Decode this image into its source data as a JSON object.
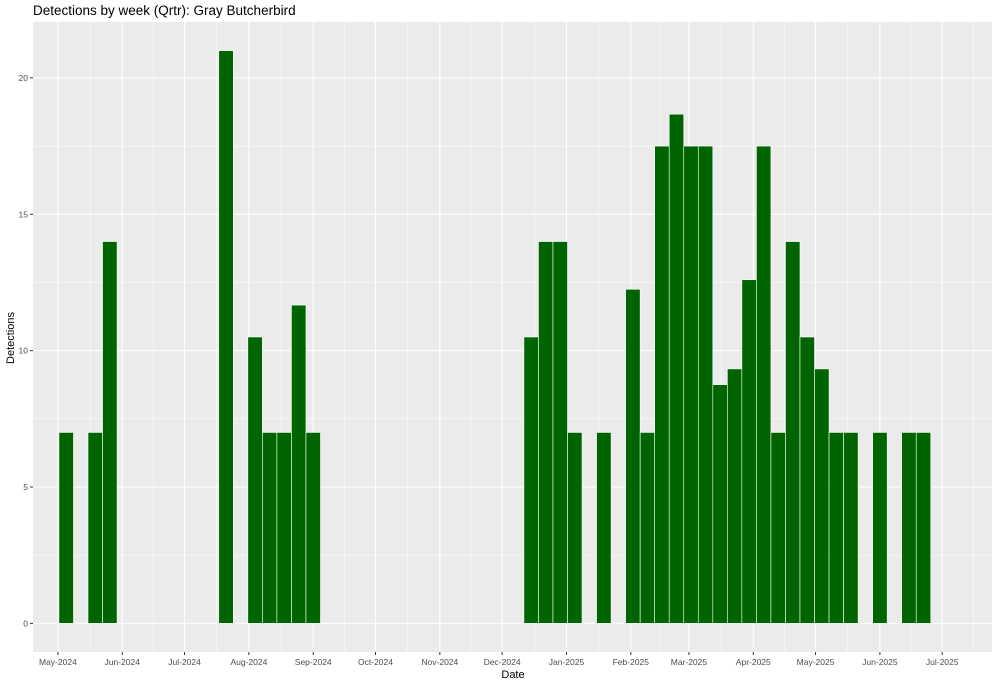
{
  "chart_data": {
    "type": "bar",
    "title": "Detections by week (Qrtr): Gray Butcherbird",
    "xlabel": "Date",
    "ylabel": "Detections",
    "x_tick_labels": [
      "May-2024",
      "Jun-2024",
      "Jul-2024",
      "Aug-2024",
      "Sep-2024",
      "Oct-2024",
      "Nov-2024",
      "Dec-2024",
      "Jan-2025",
      "Feb-2025",
      "Mar-2025",
      "Apr-2025",
      "May-2025",
      "Jun-2025",
      "Jul-2025"
    ],
    "y_ticks": [
      0,
      5,
      10,
      15,
      20
    ],
    "ylim": [
      -1.05,
      22.05
    ],
    "xlim": [
      "2024-04-19",
      "2025-07-25"
    ],
    "grid": true,
    "bar_color": "#006400",
    "panel_color": "#ebebeb",
    "gridline_color": "#ffffff",
    "bars": [
      {
        "week": "2024-05-05",
        "value": 7
      },
      {
        "week": "2024-05-19",
        "value": 7
      },
      {
        "week": "2024-05-26",
        "value": 14
      },
      {
        "week": "2024-07-21",
        "value": 21
      },
      {
        "week": "2024-08-04",
        "value": 10.5
      },
      {
        "week": "2024-08-11",
        "value": 7
      },
      {
        "week": "2024-08-18",
        "value": 7
      },
      {
        "week": "2024-08-25",
        "value": 11.67
      },
      {
        "week": "2024-09-01",
        "value": 7
      },
      {
        "week": "2024-12-15",
        "value": 10.5
      },
      {
        "week": "2024-12-22",
        "value": 14
      },
      {
        "week": "2024-12-29",
        "value": 14
      },
      {
        "week": "2025-01-05",
        "value": 7
      },
      {
        "week": "2025-01-19",
        "value": 7
      },
      {
        "week": "2025-02-02",
        "value": 12.25
      },
      {
        "week": "2025-02-09",
        "value": 7
      },
      {
        "week": "2025-02-16",
        "value": 17.5
      },
      {
        "week": "2025-02-23",
        "value": 18.67
      },
      {
        "week": "2025-03-02",
        "value": 17.5
      },
      {
        "week": "2025-03-09",
        "value": 17.5
      },
      {
        "week": "2025-03-16",
        "value": 8.75
      },
      {
        "week": "2025-03-23",
        "value": 9.33
      },
      {
        "week": "2025-03-30",
        "value": 12.6
      },
      {
        "week": "2025-04-06",
        "value": 17.5
      },
      {
        "week": "2025-04-13",
        "value": 7
      },
      {
        "week": "2025-04-20",
        "value": 14
      },
      {
        "week": "2025-04-27",
        "value": 10.5
      },
      {
        "week": "2025-05-04",
        "value": 9.33
      },
      {
        "week": "2025-05-11",
        "value": 7
      },
      {
        "week": "2025-05-18",
        "value": 7
      },
      {
        "week": "2025-06-01",
        "value": 7
      },
      {
        "week": "2025-06-15",
        "value": 7
      },
      {
        "week": "2025-06-22",
        "value": 7
      }
    ]
  }
}
